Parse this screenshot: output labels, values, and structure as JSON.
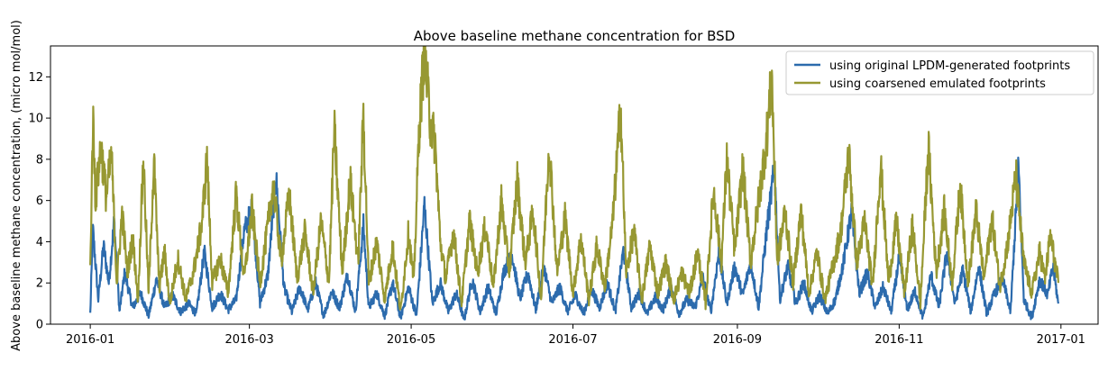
{
  "chart_data": {
    "type": "line",
    "title": "Above baseline methane concentration for BSD",
    "xlabel": "",
    "ylabel": "Above baseline methane concentration, (micro mol/mol)",
    "xlim": [
      "2015-12-17",
      "2017-01-15"
    ],
    "ylim": [
      0,
      13.5
    ],
    "x_ticks": [
      "2016-01",
      "2016-03",
      "2016-05",
      "2016-07",
      "2016-09",
      "2016-11",
      "2017-01"
    ],
    "y_ticks": [
      0,
      2,
      4,
      6,
      8,
      10,
      12
    ],
    "grid": false,
    "legend_position": "top-right",
    "series": [
      {
        "name": "using original LPDM-generated footprints",
        "color": "#2c6bad",
        "points": [
          [
            "2016-01-01",
            0.5
          ],
          [
            "2016-01-02",
            4.6
          ],
          [
            "2016-01-04",
            1.2
          ],
          [
            "2016-01-06",
            3.8
          ],
          [
            "2016-01-08",
            2.0
          ],
          [
            "2016-01-10",
            5.0
          ],
          [
            "2016-01-12",
            0.6
          ],
          [
            "2016-01-14",
            2.5
          ],
          [
            "2016-01-17",
            0.8
          ],
          [
            "2016-01-20",
            1.5
          ],
          [
            "2016-01-23",
            0.4
          ],
          [
            "2016-01-26",
            2.2
          ],
          [
            "2016-01-29",
            0.8
          ],
          [
            "2016-02-01",
            1.4
          ],
          [
            "2016-02-04",
            0.6
          ],
          [
            "2016-02-07",
            1.0
          ],
          [
            "2016-02-10",
            0.5
          ],
          [
            "2016-02-13",
            3.5
          ],
          [
            "2016-02-16",
            0.8
          ],
          [
            "2016-02-19",
            1.5
          ],
          [
            "2016-02-22",
            0.7
          ],
          [
            "2016-02-25",
            1.2
          ],
          [
            "2016-02-28",
            4.5
          ],
          [
            "2016-03-02",
            5.6
          ],
          [
            "2016-03-05",
            1.0
          ],
          [
            "2016-03-08",
            2.4
          ],
          [
            "2016-03-11",
            7.2
          ],
          [
            "2016-03-14",
            1.8
          ],
          [
            "2016-03-17",
            0.6
          ],
          [
            "2016-03-20",
            1.8
          ],
          [
            "2016-03-23",
            0.7
          ],
          [
            "2016-03-26",
            2.0
          ],
          [
            "2016-03-29",
            0.4
          ],
          [
            "2016-04-01",
            1.6
          ],
          [
            "2016-04-04",
            0.8
          ],
          [
            "2016-04-07",
            2.4
          ],
          [
            "2016-04-10",
            0.6
          ],
          [
            "2016-04-13",
            4.8
          ],
          [
            "2016-04-15",
            0.8
          ],
          [
            "2016-04-18",
            1.5
          ],
          [
            "2016-04-21",
            0.4
          ],
          [
            "2016-04-24",
            2.0
          ],
          [
            "2016-04-27",
            0.3
          ],
          [
            "2016-04-30",
            1.8
          ],
          [
            "2016-05-03",
            0.4
          ],
          [
            "2016-05-06",
            5.8
          ],
          [
            "2016-05-09",
            1.0
          ],
          [
            "2016-05-12",
            2.0
          ],
          [
            "2016-05-15",
            0.6
          ],
          [
            "2016-05-18",
            1.5
          ],
          [
            "2016-05-21",
            0.2
          ],
          [
            "2016-05-24",
            2.2
          ],
          [
            "2016-05-27",
            0.6
          ],
          [
            "2016-05-30",
            1.8
          ],
          [
            "2016-06-02",
            0.5
          ],
          [
            "2016-06-05",
            2.6
          ],
          [
            "2016-06-08",
            3.4
          ],
          [
            "2016-06-11",
            1.2
          ],
          [
            "2016-06-14",
            2.5
          ],
          [
            "2016-06-17",
            0.7
          ],
          [
            "2016-06-20",
            2.8
          ],
          [
            "2016-06-23",
            1.0
          ],
          [
            "2016-06-26",
            1.8
          ],
          [
            "2016-06-29",
            0.6
          ],
          [
            "2016-07-02",
            1.4
          ],
          [
            "2016-07-05",
            0.5
          ],
          [
            "2016-07-08",
            1.7
          ],
          [
            "2016-07-11",
            0.8
          ],
          [
            "2016-07-14",
            2.0
          ],
          [
            "2016-07-17",
            0.6
          ],
          [
            "2016-07-20",
            3.6
          ],
          [
            "2016-07-23",
            0.8
          ],
          [
            "2016-07-26",
            1.5
          ],
          [
            "2016-07-29",
            0.5
          ],
          [
            "2016-08-01",
            1.3
          ],
          [
            "2016-08-04",
            0.7
          ],
          [
            "2016-08-07",
            1.8
          ],
          [
            "2016-08-10",
            0.5
          ],
          [
            "2016-08-13",
            1.2
          ],
          [
            "2016-08-16",
            0.8
          ],
          [
            "2016-08-19",
            2.2
          ],
          [
            "2016-08-22",
            0.6
          ],
          [
            "2016-08-25",
            3.5
          ],
          [
            "2016-08-28",
            1.0
          ],
          [
            "2016-08-31",
            2.8
          ],
          [
            "2016-09-03",
            1.4
          ],
          [
            "2016-09-06",
            3.0
          ],
          [
            "2016-09-09",
            0.8
          ],
          [
            "2016-09-12",
            4.5
          ],
          [
            "2016-09-15",
            7.6
          ],
          [
            "2016-09-17",
            1.2
          ],
          [
            "2016-09-20",
            2.8
          ],
          [
            "2016-09-23",
            1.0
          ],
          [
            "2016-09-26",
            2.0
          ],
          [
            "2016-09-29",
            0.6
          ],
          [
            "2016-10-02",
            1.4
          ],
          [
            "2016-10-05",
            0.5
          ],
          [
            "2016-10-08",
            1.2
          ],
          [
            "2016-10-11",
            3.0
          ],
          [
            "2016-10-14",
            5.4
          ],
          [
            "2016-10-17",
            1.5
          ],
          [
            "2016-10-20",
            2.5
          ],
          [
            "2016-10-23",
            0.8
          ],
          [
            "2016-10-26",
            1.8
          ],
          [
            "2016-10-29",
            0.6
          ],
          [
            "2016-11-01",
            3.2
          ],
          [
            "2016-11-04",
            0.7
          ],
          [
            "2016-11-07",
            1.6
          ],
          [
            "2016-11-10",
            0.3
          ],
          [
            "2016-11-13",
            2.4
          ],
          [
            "2016-11-16",
            0.8
          ],
          [
            "2016-11-19",
            3.5
          ],
          [
            "2016-11-22",
            1.0
          ],
          [
            "2016-11-25",
            2.6
          ],
          [
            "2016-11-28",
            0.6
          ],
          [
            "2016-12-01",
            2.8
          ],
          [
            "2016-12-04",
            0.5
          ],
          [
            "2016-12-07",
            1.5
          ],
          [
            "2016-12-10",
            2.2
          ],
          [
            "2016-12-13",
            0.6
          ],
          [
            "2016-12-16",
            7.7
          ],
          [
            "2016-12-18",
            1.2
          ],
          [
            "2016-12-21",
            0.3
          ],
          [
            "2016-12-24",
            2.2
          ],
          [
            "2016-12-27",
            1.4
          ],
          [
            "2016-12-29",
            2.8
          ],
          [
            "2016-12-31",
            1.0
          ]
        ]
      },
      {
        "name": "using coarsened emulated footprints",
        "color": "#979832",
        "points": [
          [
            "2016-01-01",
            2.6
          ],
          [
            "2016-01-02",
            10.1
          ],
          [
            "2016-01-03",
            6.0
          ],
          [
            "2016-01-05",
            8.7
          ],
          [
            "2016-01-07",
            6.2
          ],
          [
            "2016-01-09",
            8.2
          ],
          [
            "2016-01-11",
            2.0
          ],
          [
            "2016-01-13",
            5.4
          ],
          [
            "2016-01-15",
            2.5
          ],
          [
            "2016-01-17",
            4.2
          ],
          [
            "2016-01-19",
            1.2
          ],
          [
            "2016-01-21",
            8.1
          ],
          [
            "2016-01-23",
            1.5
          ],
          [
            "2016-01-25",
            8.0
          ],
          [
            "2016-01-27",
            1.8
          ],
          [
            "2016-01-29",
            3.5
          ],
          [
            "2016-01-31",
            1.0
          ],
          [
            "2016-02-03",
            3.2
          ],
          [
            "2016-02-06",
            1.2
          ],
          [
            "2016-02-09",
            2.6
          ],
          [
            "2016-02-12",
            4.8
          ],
          [
            "2016-02-14",
            8.0
          ],
          [
            "2016-02-16",
            2.0
          ],
          [
            "2016-02-19",
            3.2
          ],
          [
            "2016-02-22",
            1.5
          ],
          [
            "2016-02-25",
            6.3
          ],
          [
            "2016-02-28",
            2.2
          ],
          [
            "2016-03-02",
            5.6
          ],
          [
            "2016-03-05",
            2.0
          ],
          [
            "2016-03-08",
            4.8
          ],
          [
            "2016-03-10",
            6.8
          ],
          [
            "2016-03-13",
            3.0
          ],
          [
            "2016-03-16",
            6.3
          ],
          [
            "2016-03-19",
            2.2
          ],
          [
            "2016-03-22",
            4.5
          ],
          [
            "2016-03-25",
            1.5
          ],
          [
            "2016-03-28",
            5.0
          ],
          [
            "2016-03-31",
            2.0
          ],
          [
            "2016-04-02",
            9.5
          ],
          [
            "2016-04-05",
            2.5
          ],
          [
            "2016-04-08",
            7.0
          ],
          [
            "2016-04-11",
            3.0
          ],
          [
            "2016-04-13",
            10.2
          ],
          [
            "2016-04-15",
            2.0
          ],
          [
            "2016-04-18",
            4.0
          ],
          [
            "2016-04-21",
            1.2
          ],
          [
            "2016-04-24",
            3.8
          ],
          [
            "2016-04-27",
            0.6
          ],
          [
            "2016-04-30",
            4.5
          ],
          [
            "2016-05-02",
            2.0
          ],
          [
            "2016-05-04",
            9.5
          ],
          [
            "2016-05-06",
            13.4
          ],
          [
            "2016-05-08",
            10.0
          ],
          [
            "2016-05-10",
            8.8
          ],
          [
            "2016-05-12",
            4.0
          ],
          [
            "2016-05-14",
            2.2
          ],
          [
            "2016-05-17",
            4.5
          ],
          [
            "2016-05-20",
            1.0
          ],
          [
            "2016-05-23",
            5.0
          ],
          [
            "2016-05-26",
            2.5
          ],
          [
            "2016-05-29",
            4.8
          ],
          [
            "2016-06-01",
            1.8
          ],
          [
            "2016-06-04",
            6.0
          ],
          [
            "2016-06-07",
            2.5
          ],
          [
            "2016-06-10",
            7.0
          ],
          [
            "2016-06-13",
            3.0
          ],
          [
            "2016-06-16",
            5.5
          ],
          [
            "2016-06-19",
            1.2
          ],
          [
            "2016-06-22",
            8.8
          ],
          [
            "2016-06-25",
            2.5
          ],
          [
            "2016-06-28",
            5.2
          ],
          [
            "2016-07-01",
            1.5
          ],
          [
            "2016-07-04",
            4.2
          ],
          [
            "2016-07-07",
            1.2
          ],
          [
            "2016-07-10",
            3.8
          ],
          [
            "2016-07-13",
            1.8
          ],
          [
            "2016-07-16",
            5.0
          ],
          [
            "2016-07-19",
            10.6
          ],
          [
            "2016-07-21",
            2.5
          ],
          [
            "2016-07-24",
            4.5
          ],
          [
            "2016-07-27",
            1.2
          ],
          [
            "2016-07-30",
            3.8
          ],
          [
            "2016-08-02",
            1.5
          ],
          [
            "2016-08-05",
            3.0
          ],
          [
            "2016-08-08",
            1.2
          ],
          [
            "2016-08-11",
            2.5
          ],
          [
            "2016-08-14",
            1.5
          ],
          [
            "2016-08-17",
            3.5
          ],
          [
            "2016-08-20",
            1.0
          ],
          [
            "2016-08-23",
            6.5
          ],
          [
            "2016-08-26",
            3.0
          ],
          [
            "2016-08-28",
            8.0
          ],
          [
            "2016-08-31",
            3.5
          ],
          [
            "2016-09-03",
            7.6
          ],
          [
            "2016-09-06",
            3.0
          ],
          [
            "2016-09-09",
            6.0
          ],
          [
            "2016-09-12",
            9.0
          ],
          [
            "2016-09-14",
            12.0
          ],
          [
            "2016-09-16",
            3.0
          ],
          [
            "2016-09-19",
            5.5
          ],
          [
            "2016-09-22",
            2.0
          ],
          [
            "2016-09-25",
            5.5
          ],
          [
            "2016-09-28",
            1.5
          ],
          [
            "2016-10-01",
            3.5
          ],
          [
            "2016-10-04",
            1.2
          ],
          [
            "2016-10-07",
            2.8
          ],
          [
            "2016-10-10",
            4.5
          ],
          [
            "2016-10-13",
            8.3
          ],
          [
            "2016-10-16",
            3.0
          ],
          [
            "2016-10-19",
            5.0
          ],
          [
            "2016-10-22",
            1.8
          ],
          [
            "2016-10-25",
            7.8
          ],
          [
            "2016-10-28",
            2.0
          ],
          [
            "2016-10-31",
            5.0
          ],
          [
            "2016-11-03",
            1.5
          ],
          [
            "2016-11-06",
            4.8
          ],
          [
            "2016-11-09",
            1.0
          ],
          [
            "2016-11-12",
            8.6
          ],
          [
            "2016-11-15",
            2.5
          ],
          [
            "2016-11-18",
            5.5
          ],
          [
            "2016-11-21",
            2.0
          ],
          [
            "2016-11-24",
            6.7
          ],
          [
            "2016-11-27",
            2.0
          ],
          [
            "2016-11-30",
            5.5
          ],
          [
            "2016-12-03",
            2.2
          ],
          [
            "2016-12-06",
            5.2
          ],
          [
            "2016-12-09",
            1.8
          ],
          [
            "2016-12-12",
            4.0
          ],
          [
            "2016-12-15",
            7.2
          ],
          [
            "2016-12-18",
            3.0
          ],
          [
            "2016-12-21",
            1.5
          ],
          [
            "2016-12-24",
            3.5
          ],
          [
            "2016-12-26",
            2.2
          ],
          [
            "2016-12-28",
            4.3
          ],
          [
            "2016-12-31",
            2.0
          ]
        ]
      }
    ]
  }
}
